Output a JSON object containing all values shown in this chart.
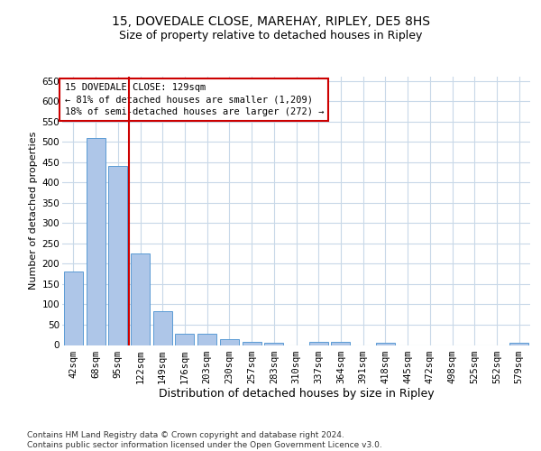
{
  "title1": "15, DOVEDALE CLOSE, MAREHAY, RIPLEY, DE5 8HS",
  "title2": "Size of property relative to detached houses in Ripley",
  "xlabel": "Distribution of detached houses by size in Ripley",
  "ylabel": "Number of detached properties",
  "categories": [
    "42sqm",
    "68sqm",
    "95sqm",
    "122sqm",
    "149sqm",
    "176sqm",
    "203sqm",
    "230sqm",
    "257sqm",
    "283sqm",
    "310sqm",
    "337sqm",
    "364sqm",
    "391sqm",
    "418sqm",
    "445sqm",
    "472sqm",
    "498sqm",
    "525sqm",
    "552sqm",
    "579sqm"
  ],
  "values": [
    180,
    510,
    440,
    225,
    83,
    28,
    28,
    15,
    8,
    6,
    0,
    8,
    8,
    0,
    5,
    0,
    0,
    0,
    0,
    0,
    5
  ],
  "bar_color": "#aec6e8",
  "bar_edge_color": "#5b9bd5",
  "vline_x": 2.5,
  "vline_color": "#cc0000",
  "annotation_text": "15 DOVEDALE CLOSE: 129sqm\n← 81% of detached houses are smaller (1,209)\n18% of semi-detached houses are larger (272) →",
  "annotation_box_color": "#ffffff",
  "annotation_box_edge_color": "#cc0000",
  "footer": "Contains HM Land Registry data © Crown copyright and database right 2024.\nContains public sector information licensed under the Open Government Licence v3.0.",
  "ylim": [
    0,
    660
  ],
  "yticks": [
    0,
    50,
    100,
    150,
    200,
    250,
    300,
    350,
    400,
    450,
    500,
    550,
    600,
    650
  ],
  "background_color": "#ffffff",
  "grid_color": "#c8d8e8",
  "title1_fontsize": 10,
  "title2_fontsize": 9,
  "xlabel_fontsize": 9,
  "ylabel_fontsize": 8,
  "tick_fontsize": 7.5,
  "annotation_fontsize": 7.5,
  "footer_fontsize": 6.5
}
